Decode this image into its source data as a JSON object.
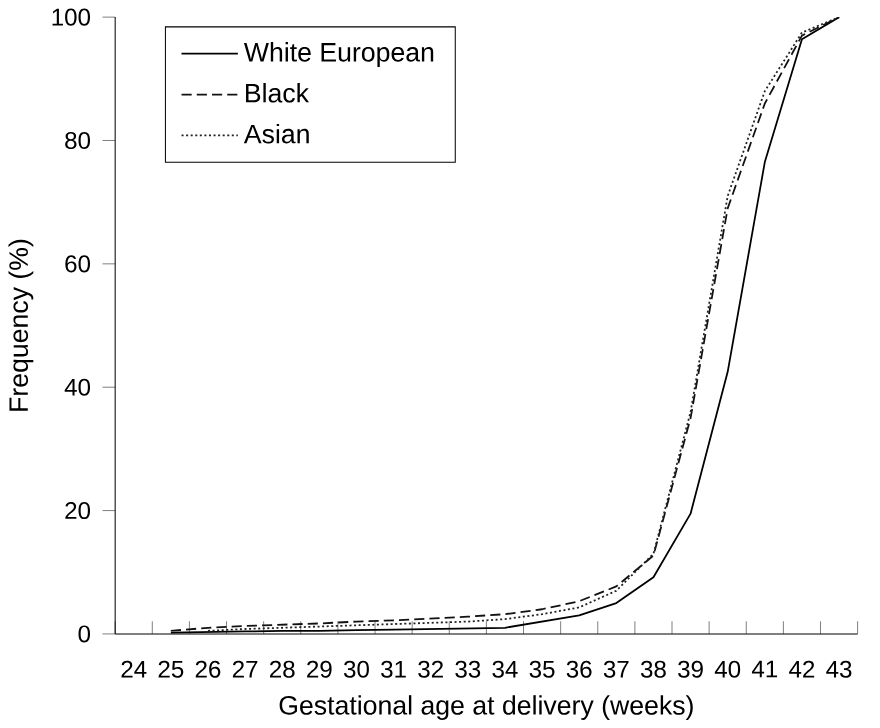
{
  "chart_data": {
    "type": "line",
    "xlabel": "Gestational age at delivery (weeks)",
    "ylabel": "Frequency (%)",
    "categories": [
      "24",
      "25",
      "26",
      "27",
      "28",
      "29",
      "30",
      "31",
      "32",
      "33",
      "34",
      "35",
      "36",
      "37",
      "38",
      "39",
      "40",
      "41",
      "42",
      "43"
    ],
    "ylim": [
      0,
      100
    ],
    "yticks": [
      0,
      20,
      40,
      60,
      80,
      100
    ],
    "legend": "top left",
    "marker": "none",
    "series": [
      {
        "name": "White European",
        "color": "#000000",
        "line_style": "solid",
        "values": [
          null,
          0.2,
          0.3,
          0.4,
          0.5,
          0.5,
          0.6,
          0.7,
          0.8,
          0.9,
          1.0,
          2.0,
          3.0,
          5.0,
          9.2,
          19.5,
          42.5,
          76.5,
          96.4,
          100
        ]
      },
      {
        "name": "Black",
        "color": "#111111",
        "line_style": "dashed",
        "values": [
          null,
          0.5,
          1.0,
          1.3,
          1.5,
          1.7,
          2.0,
          2.2,
          2.5,
          2.8,
          3.2,
          4.0,
          5.3,
          7.7,
          12.7,
          35,
          69,
          86,
          97,
          100
        ]
      },
      {
        "name": "Asian",
        "color": "#222222",
        "line_style": "dotted",
        "values": [
          null,
          null,
          0.5,
          0.8,
          1.0,
          1.2,
          1.4,
          1.6,
          1.8,
          2.0,
          2.4,
          3.2,
          4.3,
          7.0,
          13,
          36,
          71,
          88,
          97.5,
          100
        ]
      }
    ]
  }
}
